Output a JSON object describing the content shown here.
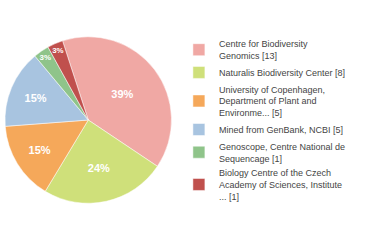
{
  "chart_data": {
    "type": "pie",
    "categories": [
      "Centre for Biodiversity\nGenomics [13]",
      "Naturalis Biodiversity Center [8]",
      "University of Copenhagen,\nDepartment of Plant and\nEnvironme... [5]",
      "Mined from GenBank, NCBI [5]",
      "Genoscope, Centre National de\nSequencage [1]",
      "Biology Centre of the Czech\nAcademy of Sciences, Institute\n... [1]"
    ],
    "values": [
      39,
      24,
      15,
      15,
      3,
      3
    ],
    "value_labels": [
      "39%",
      "24%",
      "15%",
      "15%",
      "3%",
      "3%"
    ],
    "colors": [
      "#f0a8a4",
      "#cfe07a",
      "#f5a85a",
      "#a8c4e0",
      "#8fc48a",
      "#c0504d"
    ],
    "data_labels": true,
    "legend": "right"
  }
}
